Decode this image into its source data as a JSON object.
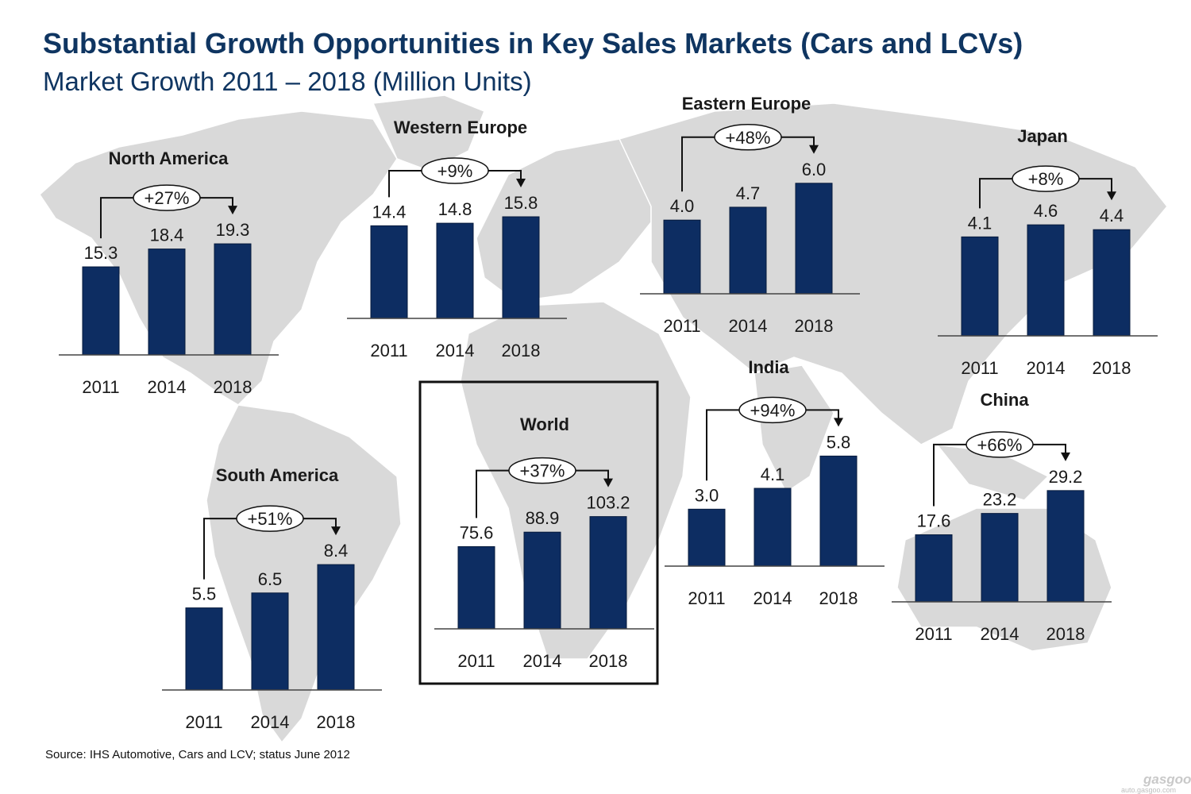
{
  "title": "Substantial Growth Opportunities in Key Sales Markets (Cars and LCVs)",
  "subtitle": "Market Growth 2011 – 2018 (Million Units)",
  "source": "Source: IHS Automotive, Cars and LCV; status June 2012",
  "watermark": {
    "logo": "gasgoo",
    "url": "auto.gasgoo.com"
  },
  "colors": {
    "bar": "#0d2d62",
    "title": "#0f3561",
    "map": "#d9d9d9"
  },
  "chart_data": [
    {
      "type": "bar",
      "title": "North America",
      "categories": [
        "2011",
        "2014",
        "2018"
      ],
      "values": [
        15.3,
        18.4,
        19.3
      ],
      "growth": "+27%"
    },
    {
      "type": "bar",
      "title": "Western Europe",
      "categories": [
        "2011",
        "2014",
        "2018"
      ],
      "values": [
        14.4,
        14.8,
        15.8
      ],
      "growth": "+9%"
    },
    {
      "type": "bar",
      "title": "Eastern Europe",
      "categories": [
        "2011",
        "2014",
        "2018"
      ],
      "values": [
        4.0,
        4.7,
        6.0
      ],
      "growth": "+48%"
    },
    {
      "type": "bar",
      "title": "Japan",
      "categories": [
        "2011",
        "2014",
        "2018"
      ],
      "values": [
        4.1,
        4.6,
        4.4
      ],
      "growth": "+8%"
    },
    {
      "type": "bar",
      "title": "South America",
      "categories": [
        "2011",
        "2014",
        "2018"
      ],
      "values": [
        5.5,
        6.5,
        8.4
      ],
      "growth": "+51%"
    },
    {
      "type": "bar",
      "title": "World",
      "categories": [
        "2011",
        "2014",
        "2018"
      ],
      "values": [
        75.6,
        88.9,
        103.2
      ],
      "growth": "+37%"
    },
    {
      "type": "bar",
      "title": "India",
      "categories": [
        "2011",
        "2014",
        "2018"
      ],
      "values": [
        3.0,
        4.1,
        5.8
      ],
      "growth": "+94%"
    },
    {
      "type": "bar",
      "title": "China",
      "categories": [
        "2011",
        "2014",
        "2018"
      ],
      "values": [
        17.6,
        23.2,
        29.2
      ],
      "growth": "+66%"
    }
  ]
}
